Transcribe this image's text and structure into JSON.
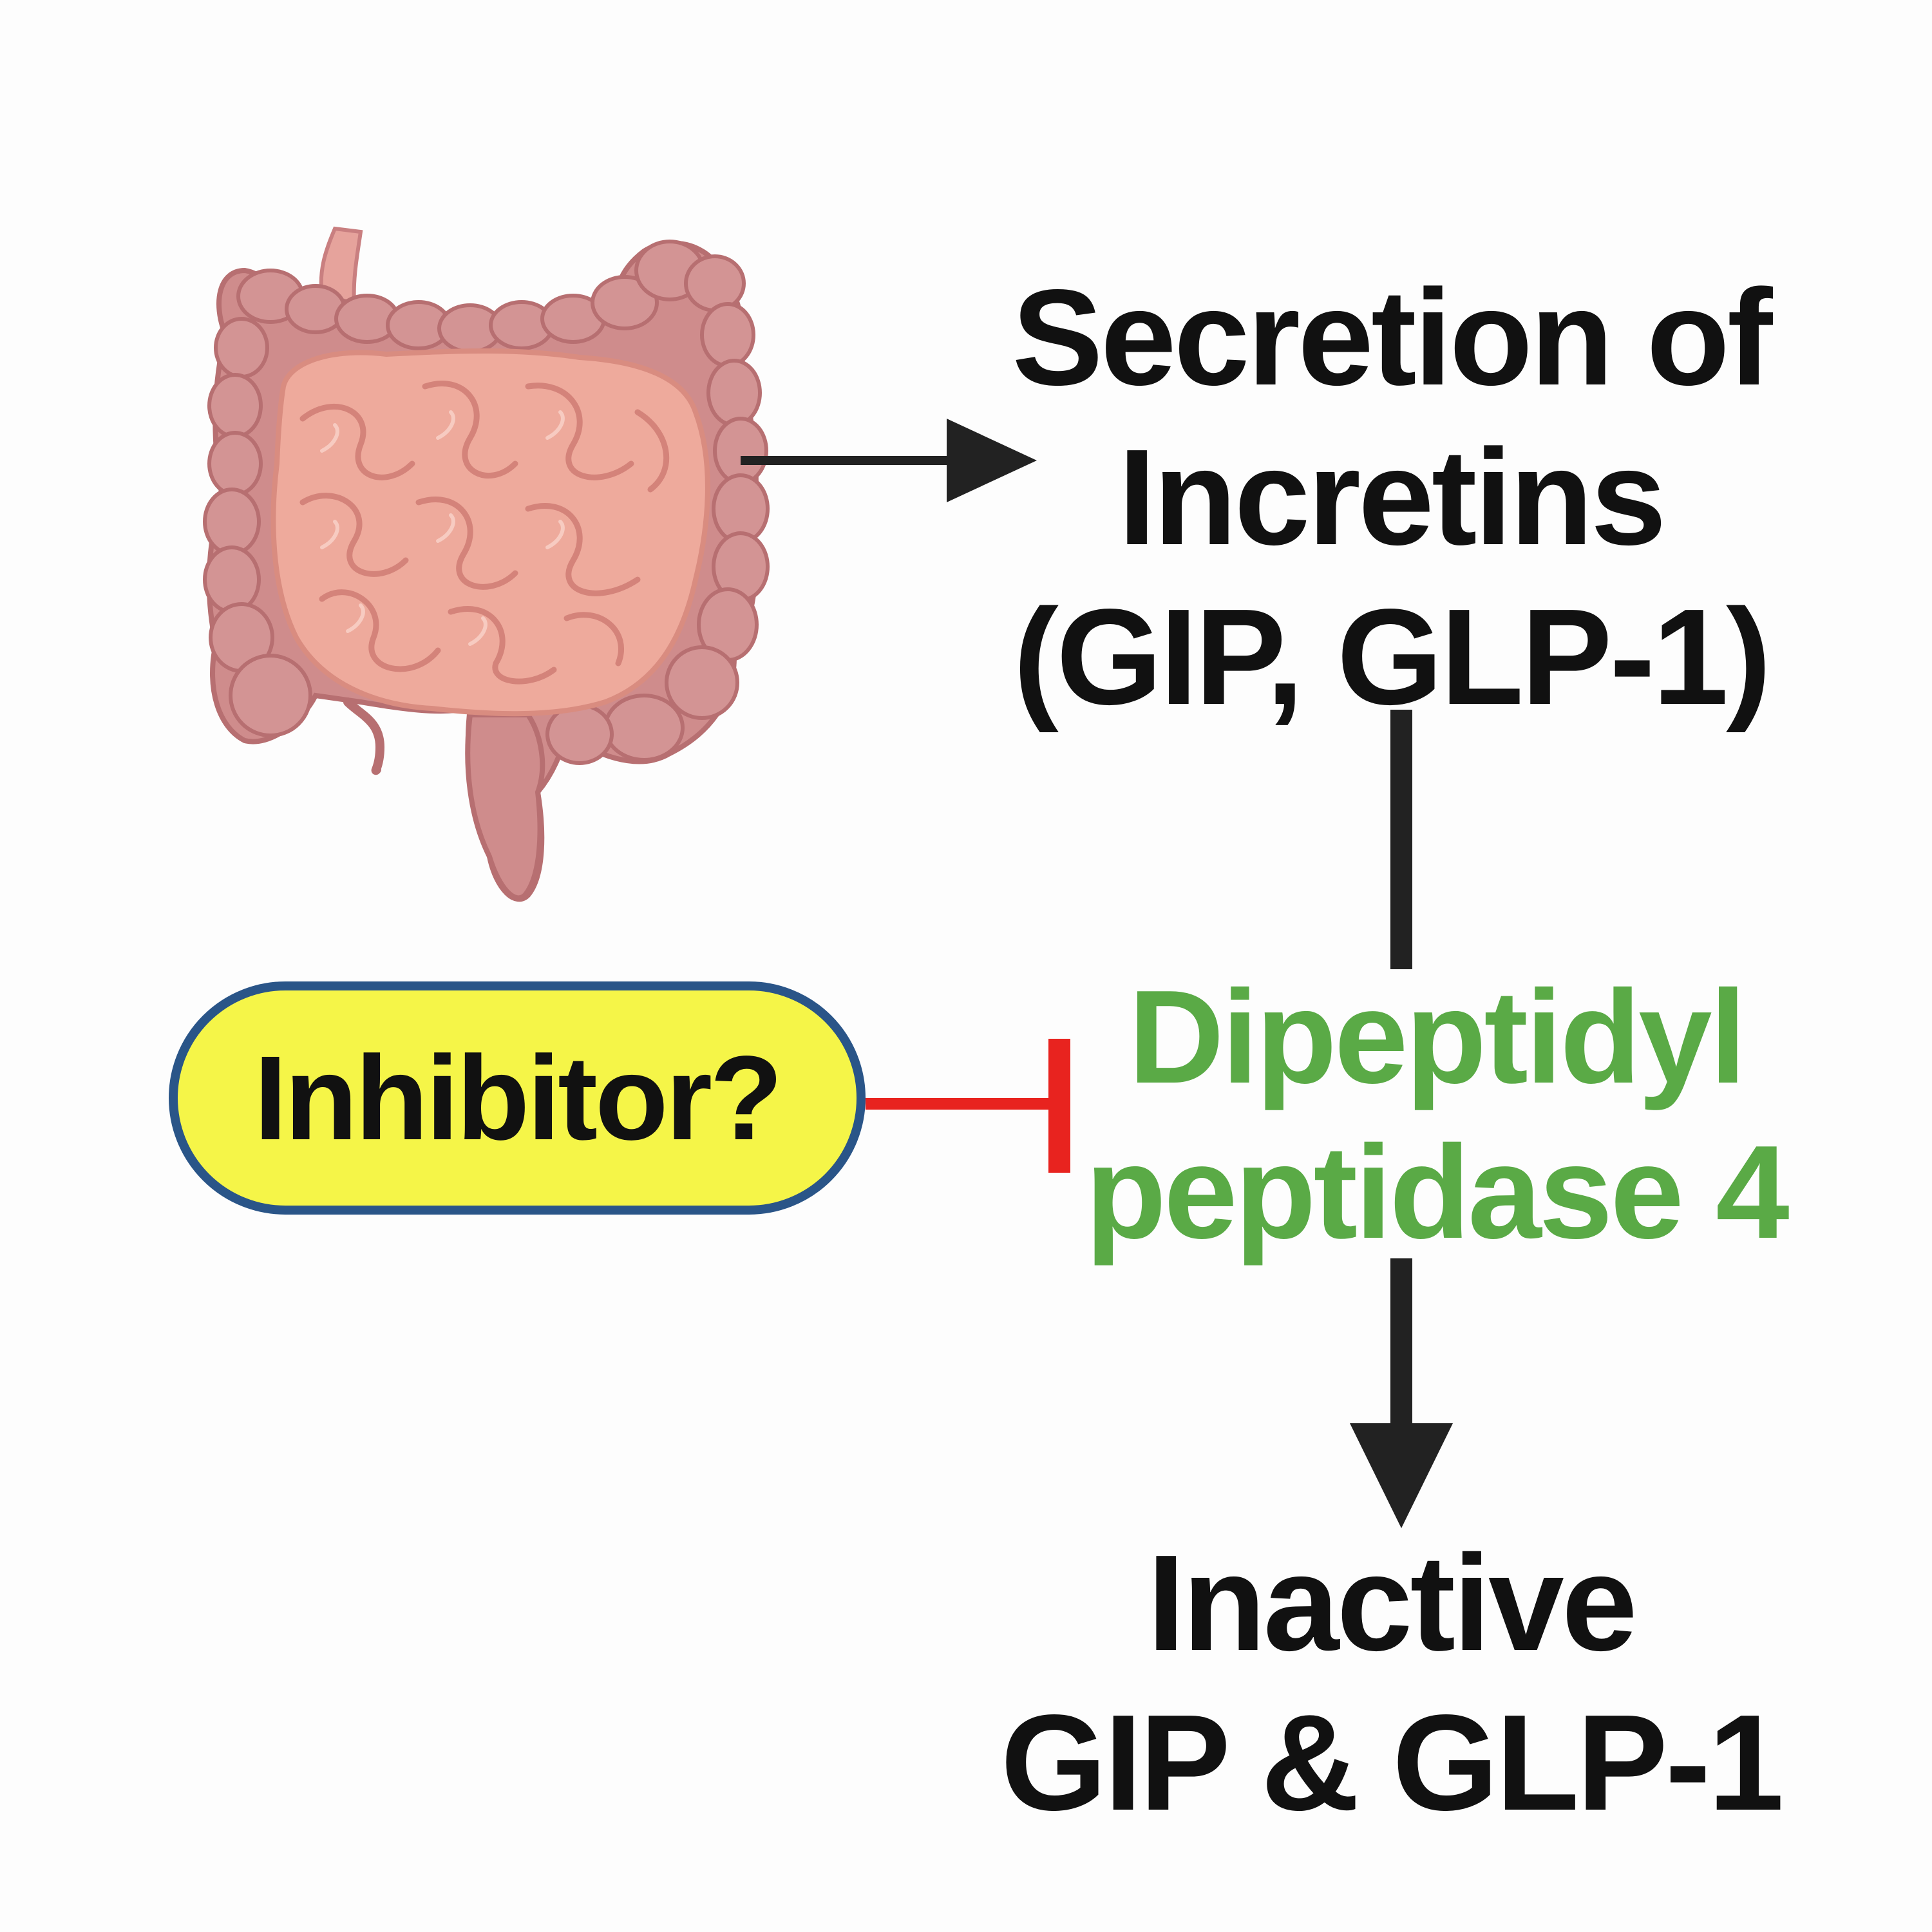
{
  "nodes": {
    "secretion": {
      "lines": [
        "Secretion of",
        "Incretins",
        "(GIP, GLP-1)"
      ],
      "color": "#111111"
    },
    "enzyme": {
      "lines": [
        "Dipeptidyl",
        "peptidase 4"
      ],
      "color": "#5aaa46"
    },
    "product": {
      "lines": [
        "Inactive",
        "GIP & GLP-1"
      ],
      "color": "#111111"
    },
    "inhibitor": {
      "label": "Inhibitor?",
      "fill": "#f5f548",
      "border": "#2a5588"
    }
  },
  "edges": [
    {
      "from": "intestine",
      "to": "secretion",
      "type": "arrow",
      "color": "#222222"
    },
    {
      "from": "secretion",
      "to": "enzyme",
      "type": "line",
      "color": "#222222"
    },
    {
      "from": "enzyme",
      "to": "product",
      "type": "arrow",
      "color": "#222222"
    },
    {
      "from": "inhibitor",
      "to": "enzyme",
      "type": "inhibition",
      "color": "#e8231f"
    }
  ],
  "illustration": {
    "icon": "intestine-icon",
    "colors": {
      "colon": "#cf8c8c",
      "colon_dark": "#b76f71",
      "small_intestine": "#eeaa9c",
      "small_intestine_shadow": "#d98c80"
    }
  }
}
